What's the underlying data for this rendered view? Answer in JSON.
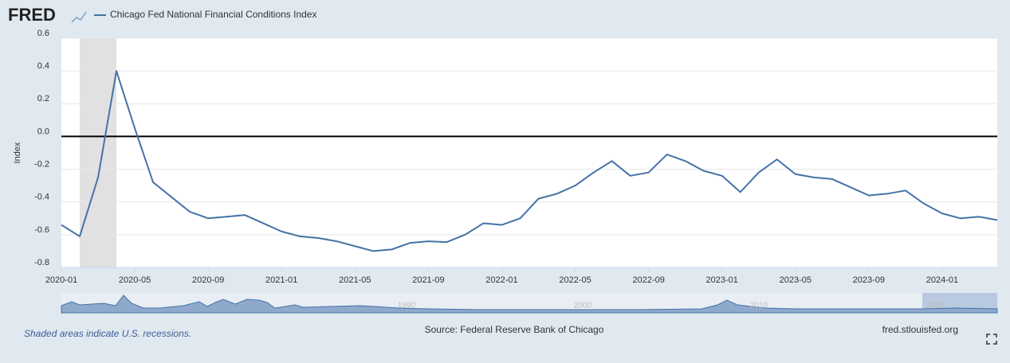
{
  "chart_data": {
    "type": "line",
    "logo": "FRED",
    "title": "Chicago Fed National Financial Conditions Index",
    "y_label": "Index",
    "note": "Shaded areas indicate U.S. recessions.",
    "source": "Source: Federal Reserve Bank of Chicago",
    "site": "fred.stlouisfed.org",
    "x": [
      "2020-01",
      "2020-02",
      "2020-03",
      "2020-04",
      "2020-05",
      "2020-06",
      "2020-07",
      "2020-08",
      "2020-09",
      "2020-10",
      "2020-11",
      "2020-12",
      "2021-01",
      "2021-02",
      "2021-03",
      "2021-04",
      "2021-05",
      "2021-06",
      "2021-07",
      "2021-08",
      "2021-09",
      "2021-10",
      "2021-11",
      "2021-12",
      "2022-01",
      "2022-02",
      "2022-03",
      "2022-04",
      "2022-05",
      "2022-06",
      "2022-07",
      "2022-08",
      "2022-09",
      "2022-10",
      "2022-11",
      "2022-12",
      "2023-01",
      "2023-02",
      "2023-03",
      "2023-04",
      "2023-05",
      "2023-06",
      "2023-07",
      "2023-08",
      "2023-09",
      "2023-10",
      "2023-11",
      "2023-12",
      "2024-01",
      "2024-02",
      "2024-03",
      "2024-04"
    ],
    "series": [
      {
        "name": "Chicago Fed National Financial Conditions Index",
        "color": "#4572a7",
        "values": [
          -0.54,
          -0.61,
          -0.25,
          0.4,
          0.05,
          -0.28,
          -0.37,
          -0.46,
          -0.5,
          -0.49,
          -0.48,
          -0.53,
          -0.58,
          -0.61,
          -0.62,
          -0.64,
          -0.67,
          -0.7,
          -0.69,
          -0.65,
          -0.64,
          -0.645,
          -0.6,
          -0.53,
          -0.54,
          -0.5,
          -0.38,
          -0.35,
          -0.3,
          -0.22,
          -0.15,
          -0.24,
          -0.22,
          -0.11,
          -0.15,
          -0.21,
          -0.24,
          -0.34,
          -0.22,
          -0.14,
          -0.23,
          -0.25,
          -0.26,
          -0.31,
          -0.36,
          -0.35,
          -0.33,
          -0.41,
          -0.47,
          -0.5,
          -0.49,
          -0.51
        ]
      }
    ],
    "xlim": [
      "2020-01",
      "2024-04"
    ],
    "xticks": [
      "2020-01",
      "2020-05",
      "2020-09",
      "2021-01",
      "2021-05",
      "2021-09",
      "2022-01",
      "2022-05",
      "2022-09",
      "2023-01",
      "2023-05",
      "2023-09",
      "2024-01"
    ],
    "ylim": [
      -0.8,
      0.6
    ],
    "yticks": [
      0.6,
      0.4,
      0.2,
      {
        "value": 0,
        "label": "0.0"
      },
      -0.2,
      -0.4,
      -0.6,
      -0.8
    ],
    "baseline": 0,
    "recessions": [
      {
        "start": "2020-02",
        "end": "2020-04"
      }
    ],
    "grid": true,
    "navigator_labels": [
      "1990",
      "2000",
      "2010",
      "2020"
    ]
  }
}
